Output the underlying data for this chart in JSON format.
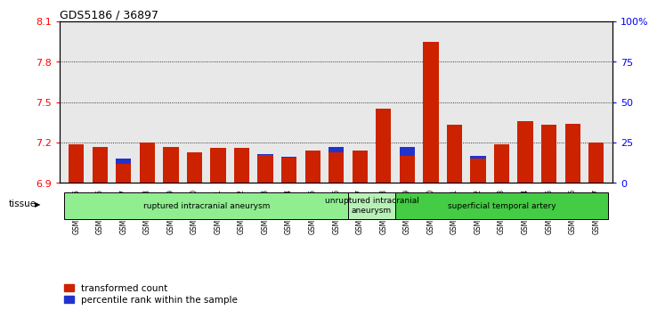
{
  "title": "GDS5186 / 36897",
  "samples": [
    "GSM1306885",
    "GSM1306886",
    "GSM1306887",
    "GSM1306888",
    "GSM1306889",
    "GSM1306890",
    "GSM1306891",
    "GSM1306892",
    "GSM1306893",
    "GSM1306894",
    "GSM1306895",
    "GSM1306896",
    "GSM1306897",
    "GSM1306898",
    "GSM1306899",
    "GSM1306900",
    "GSM1306901",
    "GSM1306902",
    "GSM1306903",
    "GSM1306904",
    "GSM1306905",
    "GSM1306906",
    "GSM1306907"
  ],
  "red_values": [
    7.19,
    7.17,
    7.04,
    7.2,
    7.17,
    7.13,
    7.16,
    7.16,
    7.11,
    7.09,
    7.14,
    7.13,
    7.14,
    7.45,
    7.1,
    7.95,
    7.33,
    7.08,
    7.19,
    7.36,
    7.33,
    7.34,
    7.2
  ],
  "blue_values_pct": [
    22,
    20,
    15,
    22,
    20,
    18,
    19,
    20,
    18,
    16,
    18,
    22,
    18,
    35,
    22,
    52,
    30,
    17,
    22,
    30,
    28,
    28,
    22
  ],
  "groups": [
    {
      "label": "ruptured intracranial aneurysm",
      "start": 0,
      "end": 12,
      "color": "#90EE90"
    },
    {
      "label": "unruptured intracranial\naneurysm",
      "start": 12,
      "end": 14,
      "color": "#b8f0b8"
    },
    {
      "label": "superficial temporal artery",
      "start": 14,
      "end": 23,
      "color": "#44cc44"
    }
  ],
  "ylim_left": [
    6.9,
    8.1
  ],
  "yticks_left": [
    6.9,
    7.2,
    7.5,
    7.8,
    8.1
  ],
  "ylim_right": [
    0,
    100
  ],
  "yticks_right": [
    0,
    25,
    50,
    75,
    100
  ],
  "ytick_labels_right": [
    "0",
    "25",
    "50",
    "75",
    "100%"
  ],
  "bar_color_red": "#cc2200",
  "bar_color_blue": "#2233cc",
  "bar_width": 0.65,
  "background_color": "#ffffff",
  "plot_bg_color": "#e8e8e8",
  "grid_color": "black",
  "legend_red": "transformed count",
  "legend_blue": "percentile rank within the sample",
  "tissue_label": "tissue"
}
